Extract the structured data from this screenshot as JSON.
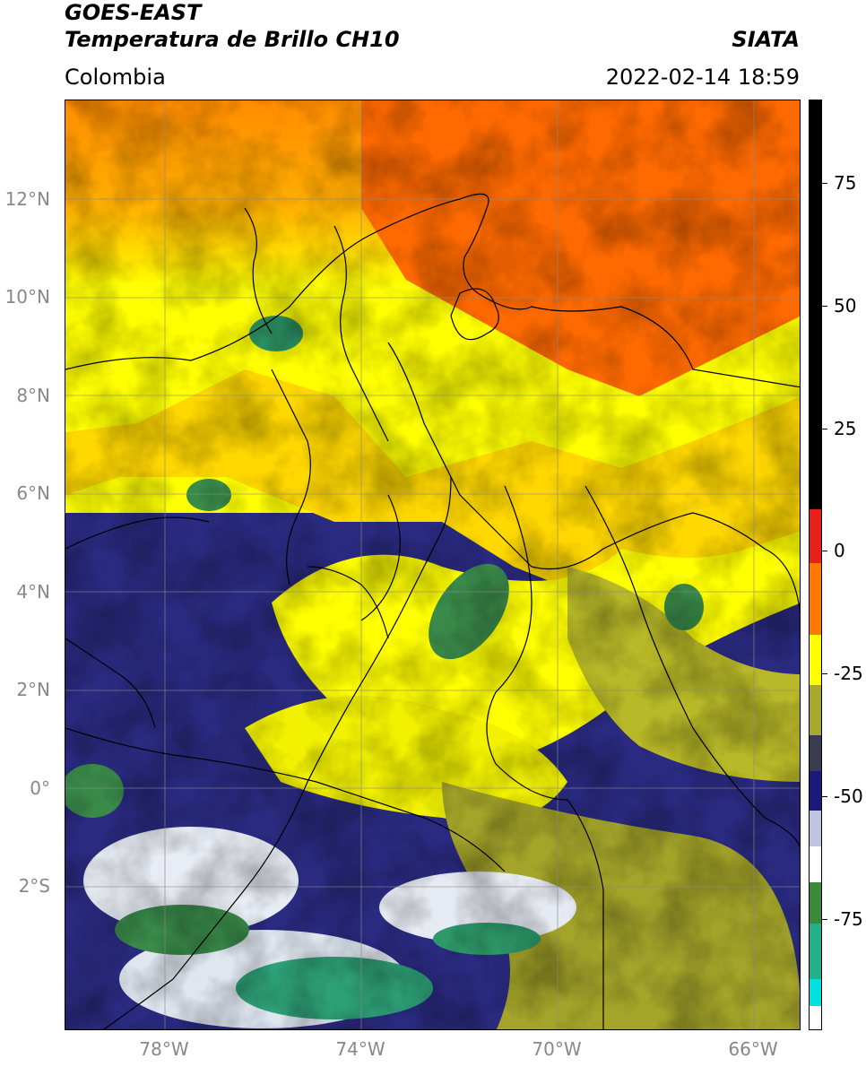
{
  "header": {
    "line1": "GOES-EAST",
    "line2": "Temperatura de Brillo CH10",
    "brand": "SIATA",
    "region": "Colombia",
    "timestamp": "2022-02-14 18:59"
  },
  "map": {
    "lat_labels": [
      "12°N",
      "10°N",
      "8°N",
      "6°N",
      "4°N",
      "2°N",
      "0°",
      "2°S"
    ],
    "lon_labels": [
      "78°W",
      "74°W",
      "70°W",
      "66°W"
    ],
    "lat_values": [
      12,
      10,
      8,
      6,
      4,
      2,
      0,
      -2
    ],
    "lon_values": [
      -78,
      -74,
      -70,
      -66
    ],
    "extent": {
      "lon_min": -80.0,
      "lon_max": -65.0,
      "lat_min": -4.9,
      "lat_max": 14.0
    }
  },
  "colorbar": {
    "tick_labels": [
      "75",
      "50",
      "25",
      "0",
      "-25",
      "-50",
      "-75"
    ],
    "tick_values": [
      75,
      50,
      25,
      0,
      -25,
      -50,
      -75
    ],
    "range": [
      -95,
      90
    ],
    "colors": {
      "warm": "#000000",
      "red": "#e8201a",
      "orange": "#ff7a00",
      "yellow": "#ffff00",
      "olive": "#a8a830",
      "navy": "#1a1a7a",
      "white": "#ffffff",
      "green": "#3a8a3a",
      "teal": "#22b08a",
      "cyan": "#00e0e0"
    }
  }
}
